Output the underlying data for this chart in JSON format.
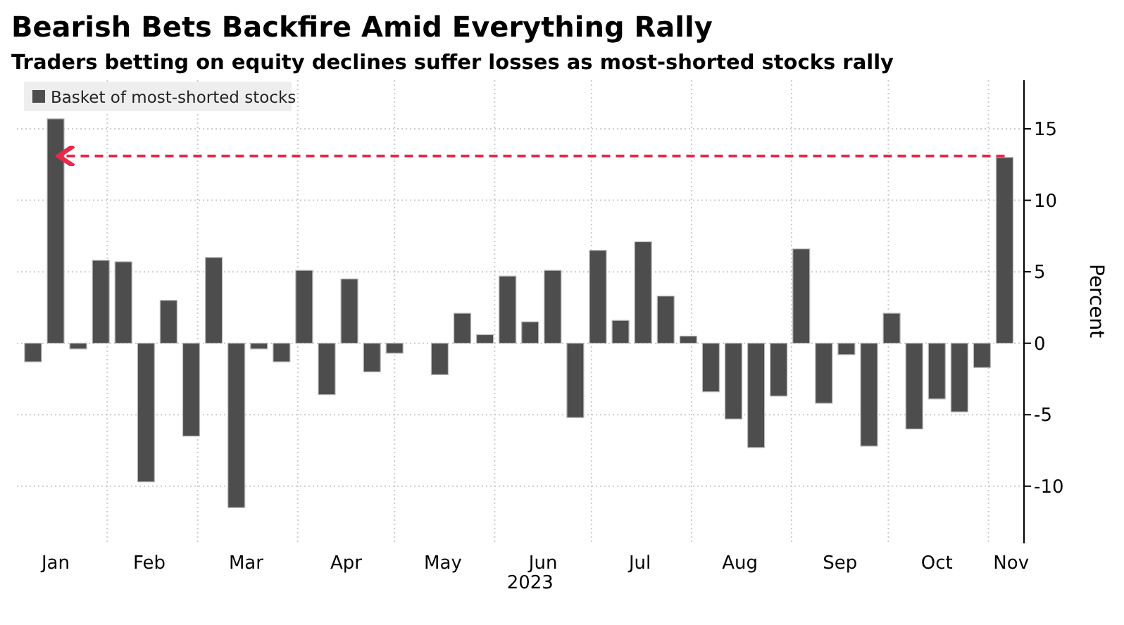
{
  "chart_data": {
    "type": "bar",
    "title": "Bearish Bets Backfire Amid Everything Rally",
    "subtitle": "Traders betting on equity declines suffer losses as most-shorted stocks rally",
    "xlabel": "2023",
    "ylabel": "Percent",
    "x": [
      "2023-01-09",
      "2023-01-16",
      "2023-01-23",
      "2023-01-30",
      "2023-02-06",
      "2023-02-13",
      "2023-02-20",
      "2023-02-27",
      "2023-03-06",
      "2023-03-13",
      "2023-03-20",
      "2023-03-27",
      "2023-04-03",
      "2023-04-10",
      "2023-04-17",
      "2023-04-24",
      "2023-05-01",
      "2023-05-08",
      "2023-05-15",
      "2023-05-22",
      "2023-05-29",
      "2023-06-05",
      "2023-06-12",
      "2023-06-19",
      "2023-06-26",
      "2023-07-03",
      "2023-07-10",
      "2023-07-17",
      "2023-07-24",
      "2023-07-31",
      "2023-08-07",
      "2023-08-14",
      "2023-08-21",
      "2023-08-28",
      "2023-09-04",
      "2023-09-11",
      "2023-09-18",
      "2023-09-25",
      "2023-10-02",
      "2023-10-09",
      "2023-10-16",
      "2023-10-23",
      "2023-10-30",
      "2023-11-06"
    ],
    "series": [
      {
        "name": "Basket of most-shorted stocks",
        "color": "#4d4d4d",
        "values": [
          -1.3,
          15.7,
          -0.4,
          5.8,
          5.7,
          -9.7,
          3.0,
          -6.5,
          6.0,
          -11.5,
          -0.4,
          -1.3,
          5.1,
          -3.6,
          4.5,
          -2.0,
          -0.7,
          0,
          -2.2,
          2.1,
          0.6,
          4.7,
          1.5,
          5.1,
          -5.2,
          6.5,
          1.6,
          7.1,
          3.3,
          0.5,
          -3.4,
          -5.3,
          -7.3,
          -3.7,
          6.6,
          -4.2,
          -0.8,
          -7.2,
          2.1,
          -6.0,
          -3.9,
          -4.8,
          -1.7,
          13.0
        ]
      }
    ],
    "xlim": [
      "2023-01-04",
      "2023-11-12"
    ],
    "xticks": [
      {
        "value": "2023-01-16",
        "label": "Jan"
      },
      {
        "value": "2023-02-01",
        "label": null
      },
      {
        "value": "2023-02-14",
        "label": "Feb"
      },
      {
        "value": "2023-03-01",
        "label": null
      },
      {
        "value": "2023-03-16",
        "label": "Mar"
      },
      {
        "value": "2023-04-01",
        "label": null
      },
      {
        "value": "2023-04-16",
        "label": "Apr"
      },
      {
        "value": "2023-05-01",
        "label": null
      },
      {
        "value": "2023-05-16",
        "label": "May"
      },
      {
        "value": "2023-06-01",
        "label": null
      },
      {
        "value": "2023-06-16",
        "label": "Jun"
      },
      {
        "value": "2023-07-01",
        "label": null
      },
      {
        "value": "2023-07-16",
        "label": "Jul"
      },
      {
        "value": "2023-08-01",
        "label": null
      },
      {
        "value": "2023-08-16",
        "label": "Aug"
      },
      {
        "value": "2023-09-01",
        "label": null
      },
      {
        "value": "2023-09-16",
        "label": "Sep"
      },
      {
        "value": "2023-10-01",
        "label": null
      },
      {
        "value": "2023-10-16",
        "label": "Oct"
      },
      {
        "value": "2023-11-01",
        "label": null
      },
      {
        "value": "2023-11-08",
        "label": "Nov"
      }
    ],
    "ylim": [
      -14,
      18.4
    ],
    "yticks": [
      -10,
      -5,
      0,
      5,
      10,
      15
    ],
    "grid": true,
    "legend": "top left",
    "ref_lines": [
      {
        "axis": "y",
        "value": 13.1,
        "color": "#e8294a",
        "line_style": "dashed"
      }
    ]
  }
}
